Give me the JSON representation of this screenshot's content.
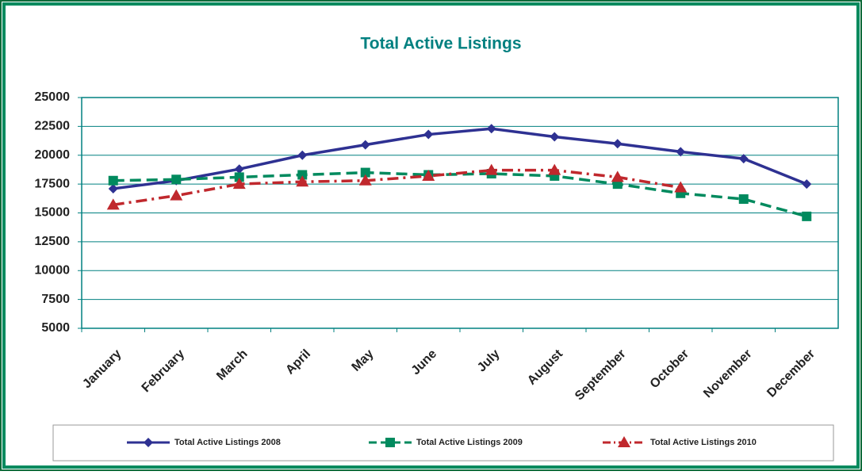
{
  "chart_data": {
    "type": "line",
    "title": "Total  Active Listings",
    "categories": [
      "January",
      "February",
      "March",
      "April",
      "May",
      "June",
      "July",
      "August",
      "September",
      "October",
      "November",
      "December"
    ],
    "series": [
      {
        "name": "Total Active Listings 2008",
        "color": "#2e3192",
        "marker": "diamond",
        "dash": "solid",
        "values": [
          17100,
          17800,
          18800,
          20000,
          20900,
          21800,
          22300,
          21600,
          21000,
          20300,
          19700,
          17500
        ]
      },
      {
        "name": "Total Active Listings 2009",
        "color": "#008a5e",
        "marker": "square",
        "dash": "dashed",
        "values": [
          17800,
          17900,
          18100,
          18300,
          18500,
          18300,
          18400,
          18200,
          17500,
          16700,
          16200,
          14700
        ]
      },
      {
        "name": "Total Active Listings 2010",
        "color": "#c0282d",
        "marker": "triangle",
        "dash": "dashdot",
        "values": [
          15700,
          16500,
          17500,
          17700,
          17800,
          18200,
          18700,
          18700,
          18100,
          17200,
          null,
          null
        ]
      }
    ],
    "ylim": [
      5000,
      25000
    ],
    "yticks": [
      5000,
      7500,
      10000,
      12500,
      15000,
      17500,
      20000,
      22500,
      25000
    ],
    "grid": true,
    "legend": "bottom"
  }
}
